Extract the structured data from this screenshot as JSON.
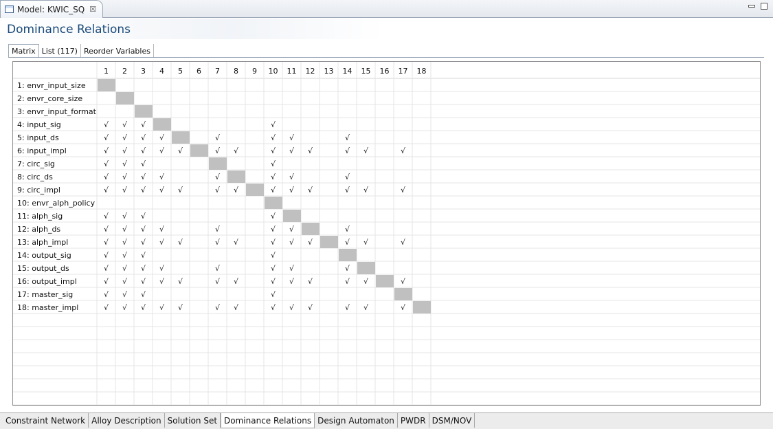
{
  "editor": {
    "tab_title": "Model: KWIC_SQ",
    "close_glyph": "☒"
  },
  "page": {
    "title": "Dominance Relations"
  },
  "sub_tabs": [
    {
      "label": "Matrix",
      "active": true
    },
    {
      "label": "List (117)",
      "active": false
    },
    {
      "label": "Reorder Variables",
      "active": false
    }
  ],
  "matrix": {
    "check_glyph": "√",
    "diagonal_color": "#c0c0c0",
    "columns": [
      "1",
      "2",
      "3",
      "4",
      "5",
      "6",
      "7",
      "8",
      "9",
      "10",
      "11",
      "12",
      "13",
      "14",
      "15",
      "16",
      "17",
      "18"
    ],
    "rows": [
      {
        "label": "1: envr_input_size",
        "checks": []
      },
      {
        "label": "2: envr_core_size",
        "checks": []
      },
      {
        "label": "3: envr_input_format",
        "checks": []
      },
      {
        "label": "4: input_sig",
        "checks": [
          1,
          2,
          3,
          10
        ]
      },
      {
        "label": "5: input_ds",
        "checks": [
          1,
          2,
          3,
          4,
          7,
          10,
          11,
          14
        ]
      },
      {
        "label": "6: input_impl",
        "checks": [
          1,
          2,
          3,
          4,
          5,
          7,
          8,
          10,
          11,
          12,
          14,
          15,
          17
        ]
      },
      {
        "label": "7: circ_sig",
        "checks": [
          1,
          2,
          3,
          10
        ]
      },
      {
        "label": "8: circ_ds",
        "checks": [
          1,
          2,
          3,
          4,
          7,
          10,
          11,
          14
        ]
      },
      {
        "label": "9: circ_impl",
        "checks": [
          1,
          2,
          3,
          4,
          5,
          7,
          8,
          10,
          11,
          12,
          14,
          15,
          17
        ]
      },
      {
        "label": "10: envr_alph_policy",
        "checks": []
      },
      {
        "label": "11: alph_sig",
        "checks": [
          1,
          2,
          3,
          10
        ]
      },
      {
        "label": "12: alph_ds",
        "checks": [
          1,
          2,
          3,
          4,
          7,
          10,
          11,
          14
        ]
      },
      {
        "label": "13: alph_impl",
        "checks": [
          1,
          2,
          3,
          4,
          5,
          7,
          8,
          10,
          11,
          12,
          14,
          15,
          17
        ]
      },
      {
        "label": "14: output_sig",
        "checks": [
          1,
          2,
          3,
          10
        ]
      },
      {
        "label": "15: output_ds",
        "checks": [
          1,
          2,
          3,
          4,
          7,
          10,
          11,
          14
        ]
      },
      {
        "label": "16: output_impl",
        "checks": [
          1,
          2,
          3,
          4,
          5,
          7,
          8,
          10,
          11,
          12,
          14,
          15,
          17
        ]
      },
      {
        "label": "17: master_sig",
        "checks": [
          1,
          2,
          3,
          10
        ]
      },
      {
        "label": "18: master_impl",
        "checks": [
          1,
          2,
          3,
          4,
          5,
          7,
          8,
          10,
          11,
          12,
          14,
          15,
          17
        ]
      }
    ]
  },
  "bottom_tabs": [
    {
      "label": "Constraint Network",
      "active": false
    },
    {
      "label": "Alloy Description",
      "active": false
    },
    {
      "label": "Solution Set",
      "active": false
    },
    {
      "label": "Dominance Relations",
      "active": true
    },
    {
      "label": "Design Automaton",
      "active": false
    },
    {
      "label": "PWDR",
      "active": false
    },
    {
      "label": "DSM/NOV",
      "active": false
    }
  ]
}
